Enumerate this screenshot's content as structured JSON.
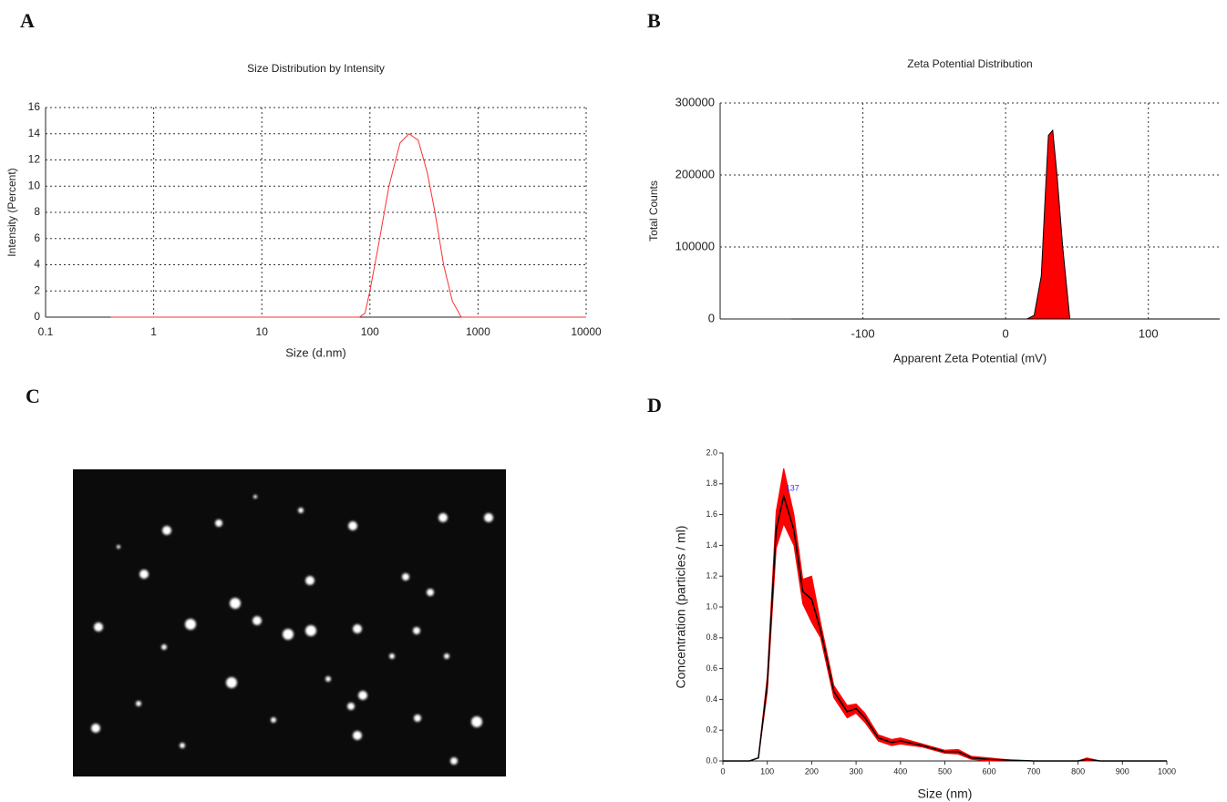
{
  "chart_data": [
    {
      "label": "A",
      "type": "line",
      "title": "Size Distribution by Intensity",
      "xlabel": "Size (d.nm)",
      "ylabel": "Intensity (Percent)",
      "log_x": true,
      "grid": true,
      "color": "#ff3030",
      "x": [
        0.4,
        1,
        10,
        80,
        90,
        100,
        120,
        150,
        190,
        230,
        280,
        340,
        400,
        480,
        580,
        700,
        1000,
        10000
      ],
      "values": [
        0,
        0,
        0,
        0,
        0.3,
        2,
        5.5,
        10,
        13.3,
        14,
        13.5,
        11,
        8,
        4,
        1.2,
        0,
        0,
        0
      ],
      "xlim": [
        0.1,
        10000
      ],
      "xticks": [
        0.1,
        1,
        10,
        100,
        1000,
        10000
      ],
      "ylim": [
        0,
        16
      ],
      "yticks": [
        0,
        2,
        4,
        6,
        8,
        10,
        12,
        14,
        16
      ]
    },
    {
      "label": "B",
      "type": "area",
      "title": "Zeta Potential Distribution",
      "xlabel": "Apparent Zeta Potential (mV)",
      "ylabel": "Total Counts",
      "grid": true,
      "color": "#ff0000",
      "x": [
        -150,
        -100,
        -50,
        0,
        15,
        20,
        25,
        28,
        30,
        33,
        36,
        40,
        45,
        150
      ],
      "values": [
        0,
        0,
        0,
        0,
        0,
        5000,
        60000,
        180000,
        255000,
        262000,
        200000,
        100000,
        0,
        0
      ],
      "xlim": [
        -200,
        150
      ],
      "xticks": [
        -100,
        0,
        100
      ],
      "ylim": [
        0,
        300000
      ],
      "yticks": [
        0,
        100000,
        200000,
        300000
      ]
    },
    {
      "label": "D",
      "type": "line",
      "xlabel": "Size (nm)",
      "ylabel": "Concentration (particles / ml)",
      "annotation": "137",
      "grid": false,
      "color": "#000000",
      "band_color": "#ff0000",
      "x": [
        0,
        60,
        80,
        100,
        120,
        137,
        160,
        180,
        200,
        220,
        250,
        280,
        300,
        320,
        350,
        380,
        400,
        450,
        500,
        530,
        560,
        600,
        650,
        700,
        800,
        820,
        850,
        900,
        1000
      ],
      "values": [
        0,
        0,
        0.02,
        0.5,
        1.5,
        1.72,
        1.5,
        1.1,
        1.05,
        0.85,
        0.45,
        0.32,
        0.34,
        0.28,
        0.15,
        0.12,
        0.13,
        0.1,
        0.06,
        0.06,
        0.02,
        0.01,
        0.005,
        0,
        0,
        0.01,
        0,
        0,
        0
      ],
      "error": [
        0,
        0,
        0,
        0.05,
        0.12,
        0.18,
        0.1,
        0.08,
        0.15,
        0.05,
        0.04,
        0.04,
        0.03,
        0.03,
        0.02,
        0.02,
        0.02,
        0.01,
        0.01,
        0.015,
        0.01,
        0.01,
        0,
        0,
        0,
        0.01,
        0,
        0,
        0
      ],
      "xlim": [
        0,
        1000
      ],
      "xticks": [
        0,
        100,
        200,
        300,
        400,
        500,
        600,
        700,
        800,
        900,
        1000
      ],
      "ylim": [
        0,
        2
      ],
      "yticks": [
        {
          "value": 0,
          "label": "0.0"
        },
        0.2,
        0.4,
        0.6,
        0.8,
        {
          "value": 1,
          "label": "1.0"
        },
        1.2,
        1.4,
        1.6,
        1.8,
        {
          "value": 2,
          "label": "2.0"
        }
      ]
    }
  ],
  "image_panel": {
    "label": "C"
  }
}
